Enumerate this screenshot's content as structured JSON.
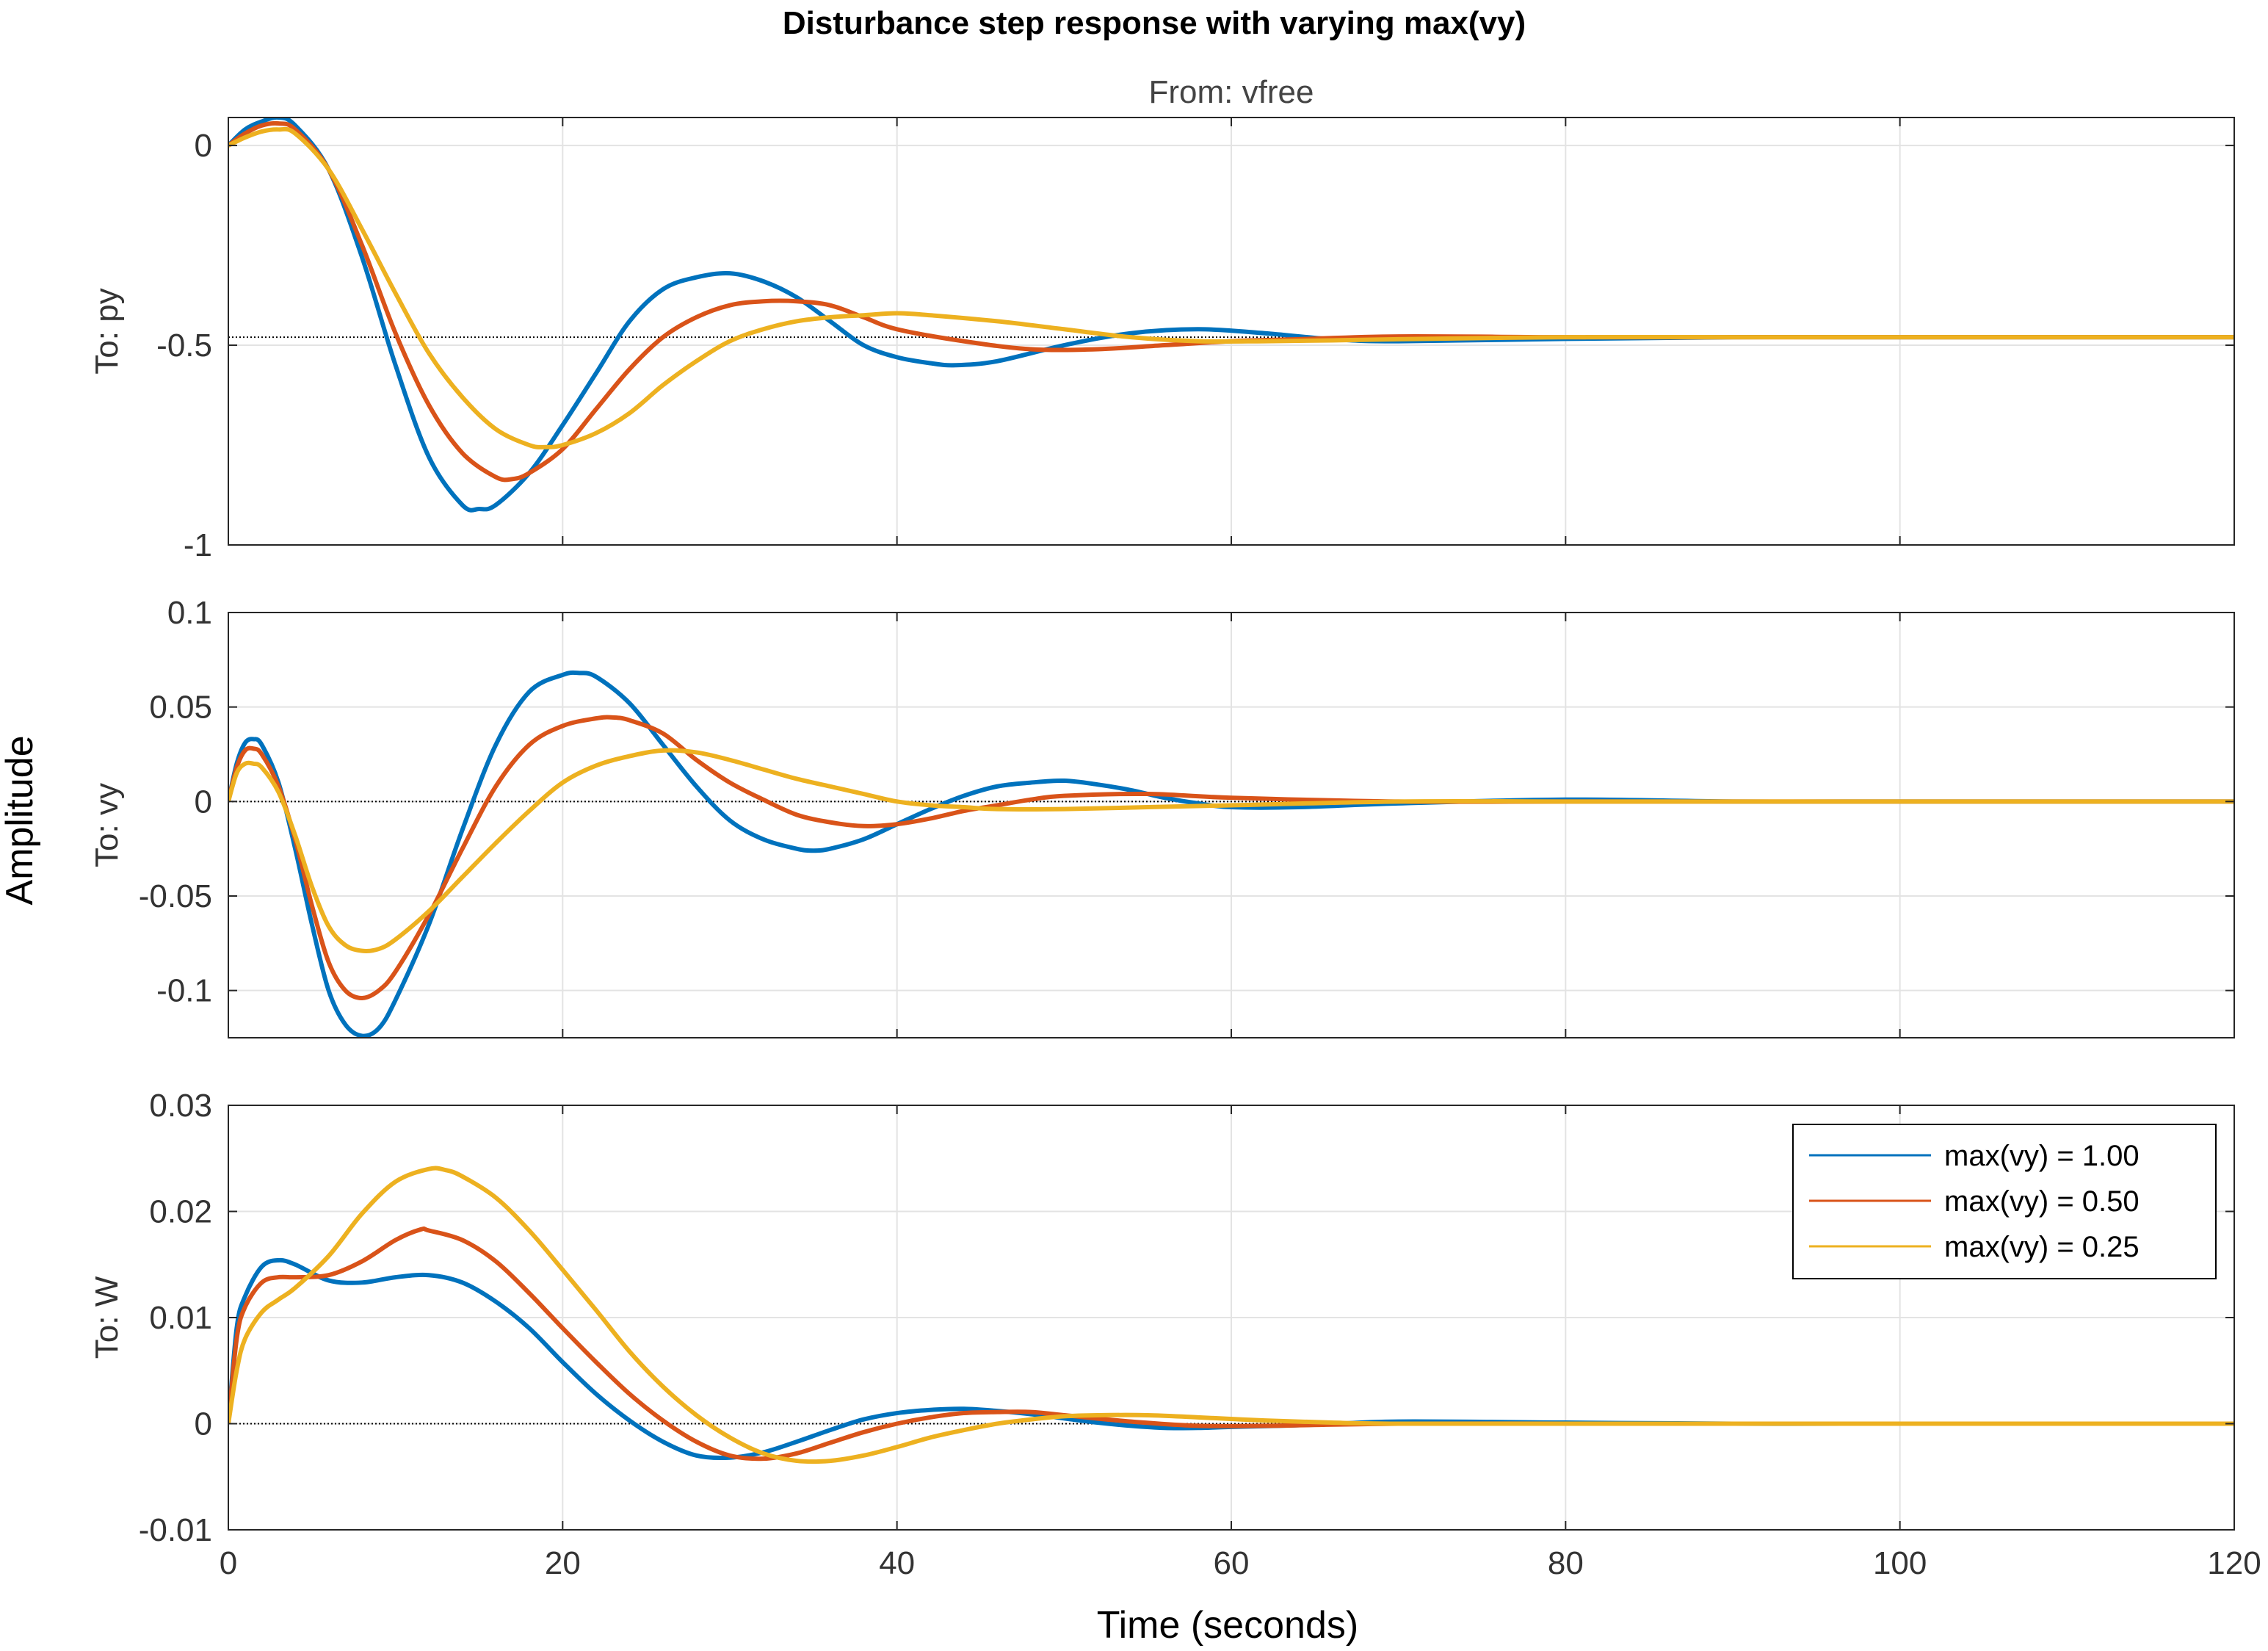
{
  "chart_data": {
    "type": "line",
    "title": "Disturbance step response with varying max(vy)",
    "subtitle": "From: vfree",
    "xlabel": "Time (seconds)",
    "ylabel": "Amplitude",
    "xlim": [
      0,
      120
    ],
    "xticks": [
      0,
      20,
      40,
      60,
      80,
      100,
      120
    ],
    "grid": true,
    "legend": {
      "placement": "inside-top-right of bottom panel",
      "entries": [
        "max(vy) = 1.00",
        "max(vy) = 0.50",
        "max(vy) = 0.25"
      ]
    },
    "colors": {
      "s1": "#0072bd",
      "s2": "#d95319",
      "s3": "#edb120",
      "grid": "#e3e3e3",
      "axis": "#262626"
    },
    "panels": [
      {
        "name": "To: py",
        "ylim": [
          -1,
          0.07
        ],
        "yticks": [
          0,
          -0.5,
          -1
        ],
        "ytick_labels": [
          "0",
          "-0.5",
          "-1"
        ],
        "steady_state": -0.48,
        "series": [
          {
            "name": "max(vy) = 1.00",
            "x": [
              0,
              1,
              2,
              3,
              4,
              6,
              8,
              10,
              12,
              14,
              15,
              16,
              18,
              20,
              22,
              24,
              26,
              28,
              30,
              32,
              34,
              36,
              38,
              40,
              42,
              43.5,
              46,
              50,
              54,
              58,
              62,
              66,
              70,
              80,
              90,
              100,
              110,
              120
            ],
            "y": [
              0,
              0.04,
              0.06,
              0.07,
              0.05,
              -0.06,
              -0.28,
              -0.55,
              -0.78,
              -0.9,
              -0.91,
              -0.9,
              -0.82,
              -0.7,
              -0.57,
              -0.44,
              -0.36,
              -0.33,
              -0.32,
              -0.34,
              -0.38,
              -0.44,
              -0.5,
              -0.53,
              -0.545,
              -0.55,
              -0.54,
              -0.5,
              -0.47,
              -0.46,
              -0.47,
              -0.485,
              -0.49,
              -0.484,
              -0.48,
              -0.48,
              -0.48,
              -0.48
            ]
          },
          {
            "name": "max(vy) = 0.50",
            "x": [
              0,
              1,
              2,
              3,
              4,
              6,
              8,
              10,
              12,
              14,
              16,
              17,
              18,
              20,
              22,
              24,
              26,
              28,
              30,
              32,
              34,
              36,
              38,
              40,
              44,
              48,
              52,
              56,
              60,
              64,
              70,
              80,
              90,
              100,
              110,
              120
            ],
            "y": [
              0,
              0.03,
              0.05,
              0.055,
              0.04,
              -0.06,
              -0.25,
              -0.47,
              -0.65,
              -0.77,
              -0.83,
              -0.835,
              -0.82,
              -0.76,
              -0.66,
              -0.56,
              -0.48,
              -0.43,
              -0.4,
              -0.39,
              -0.39,
              -0.4,
              -0.43,
              -0.46,
              -0.49,
              -0.51,
              -0.51,
              -0.5,
              -0.49,
              -0.485,
              -0.478,
              -0.48,
              -0.48,
              -0.48,
              -0.48,
              -0.48
            ]
          },
          {
            "name": "max(vy) = 0.25",
            "x": [
              0,
              1,
              2,
              3,
              4,
              6,
              8,
              10,
              12,
              14,
              16,
              18,
              19,
              20,
              22,
              24,
              26,
              28,
              30,
              32,
              34,
              36,
              38,
              40,
              42,
              46,
              50,
              54,
              58,
              62,
              66,
              70,
              80,
              90,
              100,
              110,
              120
            ],
            "y": [
              0,
              0.02,
              0.035,
              0.04,
              0.03,
              -0.06,
              -0.21,
              -0.37,
              -0.52,
              -0.63,
              -0.71,
              -0.75,
              -0.755,
              -0.75,
              -0.72,
              -0.67,
              -0.6,
              -0.54,
              -0.49,
              -0.46,
              -0.44,
              -0.43,
              -0.425,
              -0.42,
              -0.425,
              -0.44,
              -0.46,
              -0.48,
              -0.49,
              -0.49,
              -0.488,
              -0.485,
              -0.48,
              -0.48,
              -0.48,
              -0.48,
              -0.48
            ]
          }
        ]
      },
      {
        "name": "To: vy",
        "ylim": [
          -0.125,
          0.1
        ],
        "yticks": [
          0.1,
          0.05,
          0,
          -0.05,
          -0.1
        ],
        "ytick_labels": [
          "0.1",
          "0.05",
          "0",
          "-0.05",
          "-0.1"
        ],
        "steady_state": 0,
        "series": [
          {
            "name": "max(vy) = 1.00",
            "x": [
              0,
              0.5,
              1,
              1.5,
              2,
              3,
              4,
              5,
              6,
              7,
              8,
              9,
              10,
              12,
              14,
              16,
              18,
              20,
              21,
              22,
              24,
              26,
              28,
              30,
              32,
              34,
              35,
              36,
              38,
              40,
              42,
              44,
              46,
              48,
              50,
              52,
              54,
              56,
              58,
              60,
              64,
              70,
              80,
              90,
              100,
              110,
              120
            ],
            "y": [
              0,
              0.02,
              0.031,
              0.033,
              0.03,
              0.01,
              -0.025,
              -0.065,
              -0.1,
              -0.118,
              -0.124,
              -0.12,
              -0.105,
              -0.065,
              -0.015,
              0.03,
              0.058,
              0.067,
              0.068,
              0.066,
              0.052,
              0.03,
              0.008,
              -0.01,
              -0.02,
              -0.025,
              -0.026,
              -0.025,
              -0.02,
              -0.012,
              -0.004,
              0.003,
              0.008,
              0.01,
              0.011,
              0.009,
              0.006,
              0.002,
              -0.001,
              -0.003,
              -0.003,
              -0.001,
              0.001,
              0,
              0,
              0,
              0
            ]
          },
          {
            "name": "max(vy) = 0.50",
            "x": [
              0,
              0.5,
              1,
              1.5,
              2,
              3,
              4,
              5,
              6,
              7,
              8,
              9,
              10,
              12,
              14,
              16,
              18,
              20,
              22,
              23,
              24,
              26,
              28,
              30,
              32,
              34,
              36,
              38,
              40,
              42,
              44,
              46,
              48,
              50,
              55,
              60,
              70,
              80,
              90,
              100,
              110,
              120
            ],
            "y": [
              0,
              0.018,
              0.027,
              0.028,
              0.025,
              0.008,
              -0.02,
              -0.055,
              -0.085,
              -0.1,
              -0.104,
              -0.1,
              -0.09,
              -0.06,
              -0.025,
              0.008,
              0.03,
              0.04,
              0.044,
              0.0445,
              0.043,
              0.036,
              0.022,
              0.01,
              0.001,
              -0.007,
              -0.011,
              -0.013,
              -0.012,
              -0.009,
              -0.005,
              -0.002,
              0.001,
              0.003,
              0.004,
              0.002,
              0,
              0,
              0,
              0,
              0,
              0
            ]
          },
          {
            "name": "max(vy) = 0.25",
            "x": [
              0,
              0.5,
              1,
              1.5,
              2,
              3,
              4,
              5,
              6,
              7,
              8,
              9,
              10,
              12,
              14,
              16,
              18,
              20,
              22,
              24,
              26,
              28,
              30,
              32,
              34,
              36,
              38,
              40,
              42,
              44,
              46,
              50,
              55,
              60,
              70,
              80,
              90,
              100,
              110,
              120
            ],
            "y": [
              0,
              0.015,
              0.02,
              0.02,
              0.018,
              0.005,
              -0.018,
              -0.045,
              -0.066,
              -0.076,
              -0.079,
              -0.078,
              -0.073,
              -0.058,
              -0.04,
              -0.022,
              -0.005,
              0.01,
              0.019,
              0.024,
              0.027,
              0.026,
              0.022,
              0.017,
              0.012,
              0.008,
              0.004,
              0,
              -0.002,
              -0.003,
              -0.004,
              -0.004,
              -0.003,
              -0.002,
              0,
              0,
              0,
              0,
              0,
              0
            ]
          }
        ]
      },
      {
        "name": "To: W",
        "ylim": [
          -0.01,
          0.03
        ],
        "yticks": [
          0.03,
          0.02,
          0.01,
          0,
          -0.01
        ],
        "ytick_labels": [
          "0.03",
          "0.02",
          "0.01",
          "0",
          "-0.01"
        ],
        "steady_state": 0,
        "series": [
          {
            "name": "max(vy) = 1.00",
            "x": [
              0,
              0.5,
              1,
              2,
              3,
              4,
              6,
              8,
              10,
              12,
              14,
              16,
              18,
              20,
              22,
              24,
              26,
              28,
              30,
              32,
              34,
              36,
              38,
              40,
              42,
              44,
              46,
              48,
              50,
              52,
              54,
              56,
              58,
              60,
              65,
              70,
              80,
              90,
              100,
              110,
              120
            ],
            "y": [
              0,
              0.009,
              0.012,
              0.0148,
              0.0154,
              0.015,
              0.0135,
              0.0133,
              0.0138,
              0.014,
              0.0133,
              0.0115,
              0.009,
              0.0058,
              0.0028,
              0.0003,
              -0.0017,
              -0.003,
              -0.0032,
              -0.0027,
              -0.0017,
              -0.0006,
              0.0004,
              0.001,
              0.0013,
              0.0014,
              0.0012,
              0.0009,
              0.0005,
              0.0001,
              -0.0002,
              -0.0004,
              -0.0004,
              -0.0003,
              -0.0001,
              0.0002,
              0.0001,
              0,
              0,
              0,
              0
            ]
          },
          {
            "name": "max(vy) = 0.50",
            "x": [
              0,
              0.5,
              1,
              2,
              3,
              4,
              6,
              8,
              10,
              11.5,
              12,
              14,
              16,
              18,
              20,
              22,
              24,
              26,
              28,
              30,
              32,
              34,
              36,
              38,
              40,
              42,
              44,
              46,
              48,
              50,
              54,
              58,
              62,
              70,
              80,
              90,
              100,
              110,
              120
            ],
            "y": [
              0,
              0.008,
              0.011,
              0.0133,
              0.0138,
              0.0138,
              0.014,
              0.0153,
              0.0173,
              0.0183,
              0.0182,
              0.0173,
              0.0153,
              0.0123,
              0.009,
              0.0058,
              0.0028,
              0.0003,
              -0.0017,
              -0.003,
              -0.0033,
              -0.0028,
              -0.0018,
              -0.0008,
              0,
              0.0006,
              0.001,
              0.0011,
              0.0011,
              0.0008,
              0.0002,
              -0.0002,
              -0.0002,
              0,
              0,
              0,
              0,
              0,
              0
            ]
          },
          {
            "name": "max(vy) = 0.25",
            "x": [
              0,
              0.5,
              1,
              2,
              3,
              4,
              6,
              8,
              10,
              12,
              13,
              14,
              16,
              18,
              20,
              22,
              24,
              26,
              28,
              30,
              32,
              34,
              36,
              38,
              40,
              42,
              44,
              46,
              48,
              50,
              52,
              55,
              58,
              62,
              66,
              70,
              80,
              90,
              100,
              110,
              120
            ],
            "y": [
              0,
              0.005,
              0.008,
              0.0105,
              0.0117,
              0.0128,
              0.0158,
              0.0198,
              0.0228,
              0.024,
              0.0239,
              0.0233,
              0.0213,
              0.0182,
              0.0145,
              0.0107,
              0.0068,
              0.0035,
              0.0008,
              -0.0013,
              -0.0028,
              -0.0035,
              -0.0035,
              -0.003,
              -0.0022,
              -0.0013,
              -0.0006,
              0,
              0.0004,
              0.0007,
              0.0008,
              0.0008,
              0.0006,
              0.0003,
              0.0001,
              0,
              0,
              0,
              0,
              0,
              0
            ]
          }
        ]
      }
    ]
  }
}
